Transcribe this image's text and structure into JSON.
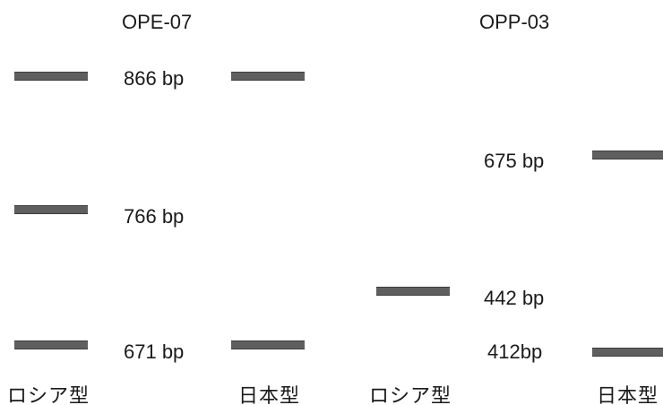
{
  "panels": [
    {
      "title": "OPE-07",
      "sizes": [
        "866 bp",
        "766 bp",
        "671 bp"
      ],
      "lanes": [
        "ロシア型",
        "日本型"
      ]
    },
    {
      "title": "OPP-03",
      "sizes": [
        "675 bp",
        "442 bp",
        "412bp"
      ],
      "lanes": [
        "ロシア型",
        "日本型"
      ]
    }
  ],
  "colors": {
    "band": "#5f5f5f",
    "text": "#1a1a1a",
    "background": "#ffffff"
  }
}
